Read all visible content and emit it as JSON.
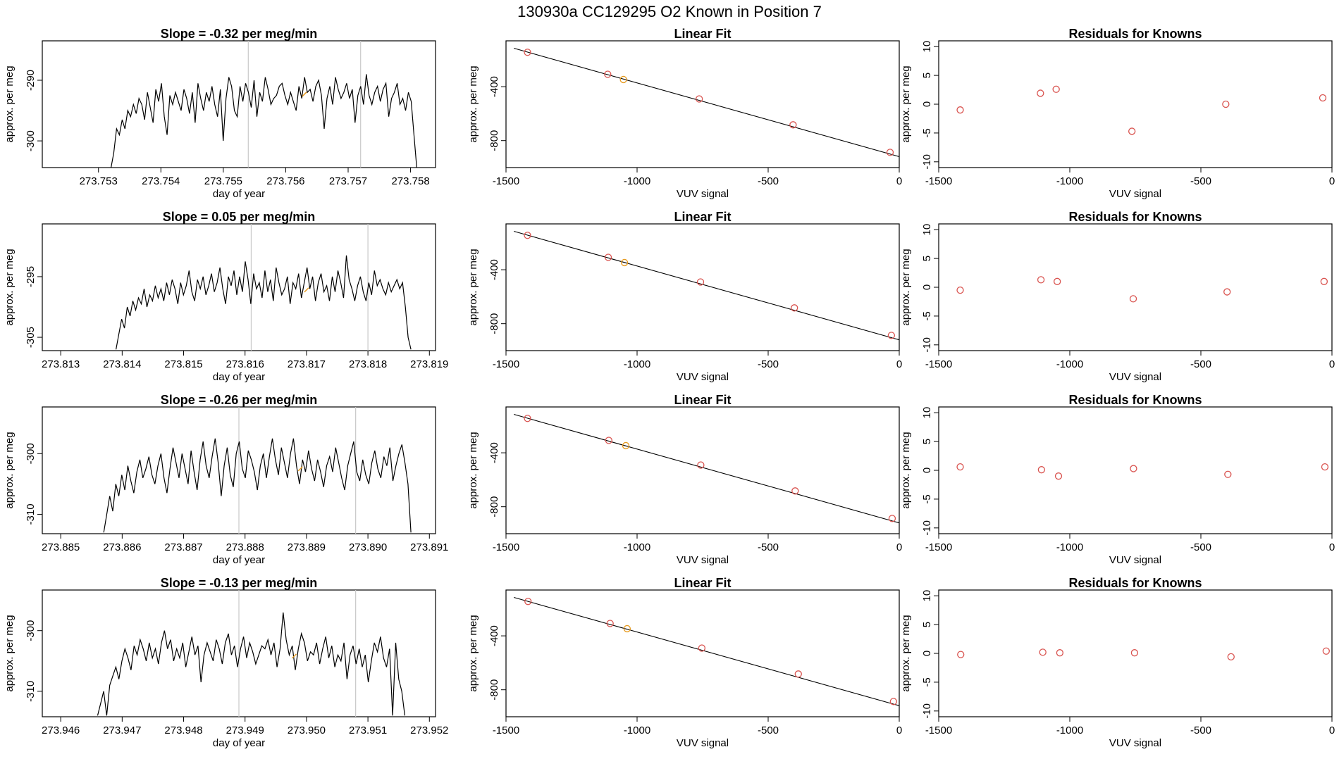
{
  "figure_title": "130930a      CC129295    O2 Known in Position  7",
  "colors": {
    "line": "#000000",
    "point_red": "#d9534f",
    "point_orange": "#e69a1f",
    "vline": "#c8c8c8"
  },
  "chart_data": [
    {
      "type": "line",
      "title": "Slope =  -0.32  per meg/min",
      "xlabel": "day of year",
      "ylabel": "approx. per meg",
      "xlim": [
        273.7521,
        273.7584
      ],
      "ylim": [
        -304.4,
        -283.5
      ],
      "xticks": [
        "273.753",
        "273.754",
        "273.755",
        "273.756",
        "273.757",
        "273.758"
      ],
      "yticks": [
        "-290",
        "-300"
      ],
      "vlines": [
        273.7554,
        273.7572
      ],
      "marker": [
        273.7563,
        -292.3
      ],
      "series_t": [
        273.7532,
        273.7581
      ],
      "series_y": [
        -304.5,
        -302,
        -298,
        -299,
        -296.5,
        -298,
        -295,
        -296,
        -294,
        -295.5,
        -293,
        -294,
        -296.5,
        -292,
        -294.5,
        -297,
        -291.5,
        -293.5,
        -290.5,
        -296,
        -299,
        -292.5,
        -294,
        -292,
        -293.5,
        -295,
        -291.5,
        -293,
        -295.5,
        -292,
        -297,
        -290.5,
        -293,
        -295,
        -292,
        -293.5,
        -291,
        -294,
        -296,
        -291.5,
        -300,
        -293,
        -289.5,
        -291,
        -295,
        -296,
        -291,
        -293.5,
        -290.5,
        -292,
        -294.5,
        -290,
        -296,
        -292,
        -293.5,
        -289.5,
        -291.5,
        -294,
        -293,
        -292.5,
        -291,
        -290.5,
        -292.5,
        -294,
        -292,
        -293.5,
        -295,
        -291,
        -293,
        -289.5,
        -292,
        -291.5,
        -293.5,
        -291,
        -290,
        -292.5,
        -298,
        -293,
        -291,
        -294,
        -289.5,
        -291.5,
        -293,
        -292,
        -290.5,
        -293,
        -291.5,
        -297,
        -292.5,
        -291,
        -294,
        -289,
        -292.5,
        -294,
        -292,
        -291,
        -293.5,
        -291.5,
        -290.5,
        -296,
        -293,
        -292,
        -290.5,
        -294,
        -293,
        -295,
        -292,
        -293.5,
        -299,
        -304.5
      ]
    },
    {
      "type": "scatter",
      "title": "Linear Fit",
      "xlabel": "VUV signal",
      "ylabel": "approx. per meg",
      "xlim": [
        -1500,
        0
      ],
      "ylim": [
        -1000,
        -60
      ],
      "xticks": [
        -1500,
        -1000,
        -500,
        0
      ],
      "yticks": [
        -400,
        -800
      ],
      "x": [
        -1418,
        -1112,
        -1052,
        -763,
        -405,
        -35
      ],
      "y": [
        -145,
        -308,
        -347,
        -491,
        -683,
        -887
      ],
      "highlight_index": 2,
      "fit": {
        "x": [
          -1470,
          0
        ],
        "y": [
          -115,
          -919
        ]
      }
    },
    {
      "type": "scatter",
      "title": "Residuals for Knowns",
      "xlabel": "VUV signal",
      "ylabel": "",
      "xlim": [
        -1500,
        0
      ],
      "ylim": [
        -11,
        11
      ],
      "xticks": [
        -1500,
        -1000,
        -500,
        0
      ],
      "yticks": [
        10,
        5,
        0,
        -5,
        -10
      ],
      "x": [
        -1418,
        -1112,
        -1052,
        -763,
        -405,
        -35
      ],
      "y": [
        -1.0,
        1.9,
        2.6,
        -4.7,
        0.0,
        1.1
      ]
    },
    {
      "type": "line",
      "title": "Slope =  0.05  per meg/min",
      "xlabel": "day of year",
      "ylabel": "approx. per meg",
      "xlim": [
        273.8127,
        273.8191
      ],
      "ylim": [
        -307.2,
        -286.3
      ],
      "xticks": [
        "273.813",
        "273.814",
        "273.815",
        "273.816",
        "273.817",
        "273.818",
        "273.819"
      ],
      "yticks": [
        "-295",
        "-305"
      ],
      "vlines": [
        273.8161,
        273.818
      ],
      "marker": [
        273.817,
        -297.2
      ],
      "series_t": [
        273.8139,
        273.8187
      ],
      "series_y": [
        -307,
        -304.5,
        -302,
        -303.5,
        -300,
        -301.5,
        -299,
        -300.5,
        -298.5,
        -299.5,
        -297,
        -300,
        -298,
        -299,
        -296.5,
        -298.5,
        -297,
        -299,
        -296,
        -298,
        -295.5,
        -297,
        -299.5,
        -296,
        -298,
        -296.5,
        -294,
        -297.5,
        -299,
        -295.5,
        -297,
        -295,
        -298,
        -296.5,
        -294.5,
        -297.5,
        -296,
        -293.5,
        -297,
        -299.5,
        -295,
        -296.5,
        -294,
        -298,
        -295,
        -297.5,
        -292.5,
        -295.5,
        -299.5,
        -294.5,
        -297,
        -296,
        -298.5,
        -294,
        -297.5,
        -295.5,
        -299,
        -293.5,
        -296,
        -298,
        -297,
        -295,
        -299.5,
        -296,
        -297,
        -294.5,
        -298.5,
        -296,
        -293.5,
        -297,
        -295,
        -299,
        -296,
        -294.5,
        -297.5,
        -296.5,
        -299,
        -295,
        -297.5,
        -294,
        -296,
        -298.5,
        -291.5,
        -295.5,
        -297,
        -299,
        -296.5,
        -295,
        -297.5,
        -299,
        -296,
        -298,
        -294,
        -296.5,
        -295.5,
        -297,
        -298,
        -296,
        -297.5,
        -296.5,
        -295.5,
        -297,
        -296,
        -300,
        -305,
        -307
      ]
    },
    {
      "type": "scatter",
      "title": "Linear Fit",
      "xlabel": "VUV signal",
      "ylabel": "approx. per meg",
      "xlim": [
        -1500,
        0
      ],
      "ylim": [
        -1000,
        -60
      ],
      "xticks": [
        -1500,
        -1000,
        -500,
        0
      ],
      "yticks": [
        -400,
        -800
      ],
      "x": [
        -1418,
        -1110,
        -1048,
        -758,
        -400,
        -30
      ],
      "y": [
        -145,
        -308,
        -347,
        -491,
        -683,
        -887
      ],
      "highlight_index": 2,
      "fit": {
        "x": [
          -1470,
          0
        ],
        "y": [
          -115,
          -920
        ]
      }
    },
    {
      "type": "scatter",
      "title": "Residuals for Knowns",
      "xlabel": "VUV signal",
      "ylabel": "",
      "xlim": [
        -1500,
        0
      ],
      "ylim": [
        -11,
        11
      ],
      "xticks": [
        -1500,
        -1000,
        -500,
        0
      ],
      "yticks": [
        10,
        5,
        0,
        -5,
        -10
      ],
      "x": [
        -1418,
        -1110,
        -1048,
        -758,
        -400,
        -30
      ],
      "y": [
        -0.5,
        1.3,
        1.0,
        -2.0,
        -0.8,
        1.0
      ]
    },
    {
      "type": "line",
      "title": "Slope =  -0.26  per meg/min",
      "xlabel": "day of year",
      "ylabel": "approx. per meg",
      "xlim": [
        273.8847,
        273.8911
      ],
      "ylim": [
        -313.2,
        -292.3
      ],
      "xticks": [
        "273.885",
        "273.886",
        "273.887",
        "273.888",
        "273.889",
        "273.890",
        "273.891"
      ],
      "yticks": [
        "-300",
        "-310"
      ],
      "vlines": [
        273.8879,
        273.8898
      ],
      "marker": [
        273.8889,
        -302.5
      ],
      "series_t": [
        273.8857,
        273.8907
      ],
      "series_y": [
        -313,
        -310,
        -307,
        -309.5,
        -305,
        -307,
        -303.5,
        -306,
        -302,
        -304.5,
        -306.5,
        -303,
        -301,
        -304,
        -302.5,
        -300.5,
        -303.5,
        -305,
        -302,
        -300,
        -304,
        -306.5,
        -302.5,
        -299,
        -301.5,
        -304,
        -300,
        -302.5,
        -305,
        -299.5,
        -303,
        -306,
        -301,
        -298,
        -302,
        -304,
        -300.5,
        -297.5,
        -301.5,
        -307,
        -302,
        -299,
        -303.5,
        -305.5,
        -300,
        -298,
        -302.5,
        -304,
        -299.5,
        -301,
        -303,
        -306,
        -302,
        -300,
        -304,
        -300.5,
        -297.5,
        -301,
        -303.5,
        -299,
        -301.5,
        -304,
        -300,
        -297.5,
        -302,
        -305,
        -301,
        -303,
        -299.5,
        -302.5,
        -304.5,
        -301,
        -303,
        -305.5,
        -302,
        -300.5,
        -303,
        -299,
        -301.5,
        -304,
        -306,
        -302,
        -300,
        -298,
        -303,
        -304.5,
        -301,
        -303.5,
        -305,
        -301.5,
        -299.5,
        -302.5,
        -304,
        -300.5,
        -302,
        -299,
        -304.5,
        -302,
        -300,
        -298.5,
        -301.5,
        -305,
        -313
      ]
    },
    {
      "type": "scatter",
      "title": "Linear Fit",
      "xlabel": "VUV signal",
      "ylabel": "approx. per meg",
      "xlim": [
        -1500,
        0
      ],
      "ylim": [
        -1000,
        -60
      ],
      "xticks": [
        -1500,
        -1000,
        -500,
        0
      ],
      "yticks": [
        -400,
        -800
      ],
      "x": [
        -1418,
        -1108,
        -1043,
        -757,
        -397,
        -27
      ],
      "y": [
        -145,
        -308,
        -347,
        -491,
        -683,
        -887
      ],
      "highlight_index": 2,
      "fit": {
        "x": [
          -1470,
          0
        ],
        "y": [
          -115,
          -920
        ]
      }
    },
    {
      "type": "scatter",
      "title": "Residuals for Knowns",
      "xlabel": "VUV signal",
      "ylabel": "",
      "xlim": [
        -1500,
        0
      ],
      "ylim": [
        -11,
        11
      ],
      "xticks": [
        -1500,
        -1000,
        -500,
        0
      ],
      "yticks": [
        10,
        5,
        0,
        -5,
        -10
      ],
      "x": [
        -1418,
        -1108,
        -1043,
        -757,
        -397,
        -27
      ],
      "y": [
        0.6,
        0.1,
        -1.0,
        0.3,
        -0.7,
        0.6
      ]
    },
    {
      "type": "line",
      "title": "Slope =  -0.13  per meg/min",
      "xlabel": "day of year",
      "ylabel": "approx. per meg",
      "xlim": [
        273.9457,
        273.9521
      ],
      "ylim": [
        -314.2,
        -293.3
      ],
      "xticks": [
        "273.946",
        "273.947",
        "273.948",
        "273.949",
        "273.950",
        "273.951",
        "273.952"
      ],
      "yticks": [
        "-300",
        "-310"
      ],
      "vlines": [
        273.9489,
        273.9508
      ],
      "marker": [
        273.9498,
        -304.2
      ],
      "series_t": [
        273.9466,
        273.9516
      ],
      "series_y": [
        -314,
        -312,
        -310,
        -314,
        -309,
        -307.5,
        -306,
        -308,
        -305,
        -303,
        -304.5,
        -306.5,
        -302.5,
        -304,
        -301.5,
        -303,
        -305,
        -302,
        -304.5,
        -303,
        -305.5,
        -302,
        -300,
        -303,
        -301.5,
        -305,
        -303,
        -304.5,
        -302,
        -306,
        -303.5,
        -301,
        -304,
        -302.5,
        -308.5,
        -304,
        -302,
        -303.5,
        -305,
        -301.5,
        -303,
        -305.5,
        -302,
        -300.5,
        -304,
        -302.5,
        -306,
        -303,
        -301,
        -304.5,
        -302,
        -303.5,
        -305.5,
        -304,
        -302.5,
        -303,
        -301.5,
        -304,
        -302,
        -306,
        -303,
        -297,
        -301.5,
        -304,
        -302.5,
        -306.5,
        -303,
        -300.5,
        -302,
        -305,
        -303.5,
        -304,
        -302,
        -305.5,
        -303,
        -301,
        -304.5,
        -302.5,
        -306,
        -304,
        -305,
        -302,
        -308,
        -304,
        -302.5,
        -305.5,
        -303,
        -306,
        -304,
        -308.5,
        -305,
        -302,
        -303.5,
        -301,
        -304.5,
        -306,
        -303,
        -314,
        -302,
        -308,
        -310,
        -314
      ]
    },
    {
      "type": "scatter",
      "title": "Linear Fit",
      "xlabel": "VUV signal",
      "ylabel": "approx. per meg",
      "xlim": [
        -1500,
        0
      ],
      "ylim": [
        -1000,
        -60
      ],
      "xticks": [
        -1500,
        -1000,
        -500,
        0
      ],
      "yticks": [
        -400,
        -800
      ],
      "x": [
        -1416,
        -1103,
        -1038,
        -753,
        -385,
        -22
      ],
      "y": [
        -145,
        -308,
        -347,
        -491,
        -683,
        -887
      ],
      "highlight_index": 2,
      "fit": {
        "x": [
          -1470,
          0
        ],
        "y": [
          -115,
          -918
        ]
      }
    },
    {
      "type": "scatter",
      "title": "Residuals for Knowns",
      "xlabel": "VUV signal",
      "ylabel": "",
      "xlim": [
        -1500,
        0
      ],
      "ylim": [
        -11,
        11
      ],
      "xticks": [
        -1500,
        -1000,
        -500,
        0
      ],
      "yticks": [
        10,
        5,
        0,
        -5,
        -10
      ],
      "x": [
        -1416,
        -1103,
        -1038,
        -753,
        -385,
        -22
      ],
      "y": [
        -0.2,
        0.2,
        0.1,
        0.1,
        -0.6,
        0.4
      ]
    }
  ]
}
